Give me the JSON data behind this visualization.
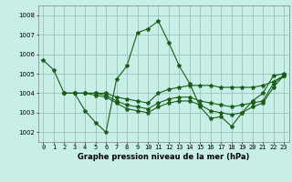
{
  "title": "Graphe pression niveau de la mer (hPa)",
  "background_color": "#c8eee8",
  "grid_color": "#a0c8c0",
  "line_color": "#1a5e1a",
  "xlim": [
    -0.5,
    23.5
  ],
  "ylim": [
    1001.5,
    1008.5
  ],
  "yticks": [
    1002,
    1003,
    1004,
    1005,
    1006,
    1007,
    1008
  ],
  "xticks": [
    0,
    1,
    2,
    3,
    4,
    5,
    6,
    7,
    8,
    9,
    10,
    11,
    12,
    13,
    14,
    15,
    16,
    17,
    18,
    19,
    20,
    21,
    22,
    23
  ],
  "series": [
    [
      1005.7,
      1005.2,
      1004.0,
      1004.0,
      1003.1,
      1002.5,
      1002.0,
      1004.7,
      1005.4,
      1007.1,
      1007.3,
      1007.7,
      1006.6,
      1005.4,
      1004.5,
      1003.3,
      1002.7,
      1002.8,
      1002.3,
      1003.0,
      1003.6,
      1004.0,
      1004.9,
      1005.0
    ],
    [
      null,
      null,
      1004.0,
      1004.0,
      1004.0,
      1004.0,
      1004.0,
      1003.8,
      1003.7,
      1003.6,
      1003.5,
      1004.0,
      1004.2,
      1004.3,
      1004.4,
      1004.4,
      1004.4,
      1004.3,
      1004.3,
      1004.3,
      1004.3,
      1004.4,
      1004.6,
      1004.9
    ],
    [
      null,
      null,
      1004.0,
      1004.0,
      1004.0,
      1004.0,
      1003.9,
      1003.6,
      1003.4,
      1003.3,
      1003.2,
      1003.5,
      1003.7,
      1003.8,
      1003.8,
      1003.6,
      1003.5,
      1003.4,
      1003.3,
      1003.4,
      1003.5,
      1003.6,
      1004.5,
      1004.9
    ],
    [
      null,
      null,
      1004.0,
      1004.0,
      1004.0,
      1003.9,
      1003.8,
      1003.5,
      1003.2,
      1003.1,
      1003.0,
      1003.3,
      1003.5,
      1003.6,
      1003.6,
      1003.4,
      1003.1,
      1003.0,
      1002.9,
      1003.0,
      1003.3,
      1003.5,
      1004.3,
      1004.9
    ]
  ],
  "title_fontsize": 6.0,
  "tick_fontsize": 5.0
}
